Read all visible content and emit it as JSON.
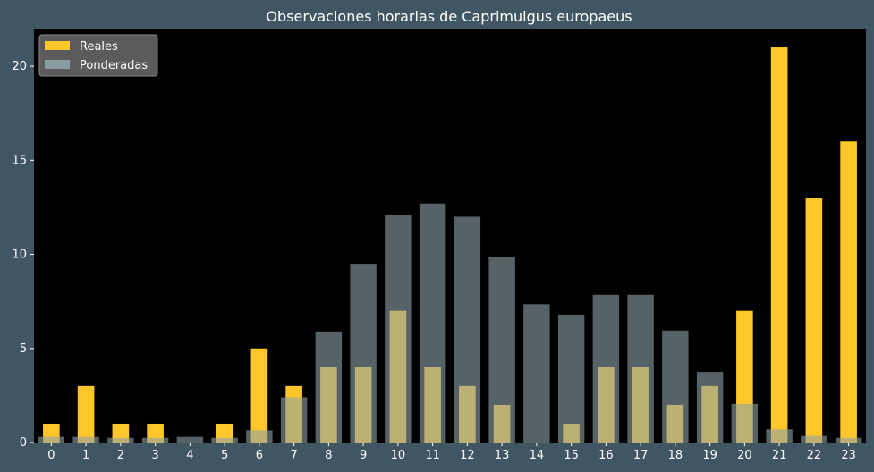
{
  "chart_data": {
    "type": "bar",
    "title": "Observaciones horarias de Caprimulgus europaeus",
    "xlabel": "",
    "ylabel": "",
    "categories": [
      "0",
      "1",
      "2",
      "3",
      "4",
      "5",
      "6",
      "7",
      "8",
      "9",
      "10",
      "11",
      "12",
      "13",
      "14",
      "15",
      "16",
      "17",
      "18",
      "19",
      "20",
      "21",
      "22",
      "23"
    ],
    "ylim": [
      0,
      22
    ],
    "yticks": [
      0,
      5,
      10,
      15,
      20
    ],
    "grid": false,
    "legend_position": "top-left",
    "series": [
      {
        "name": "Reales",
        "color": "#ffc629",
        "values": [
          1,
          3,
          1,
          1,
          0,
          1,
          5,
          3,
          4,
          4,
          7,
          4,
          3,
          2,
          0,
          1,
          4,
          4,
          2,
          3,
          7,
          21,
          13,
          16
        ]
      },
      {
        "name": "Ponderadas",
        "color": "#8fa3a8",
        "opacity": 0.6,
        "values": [
          0.3,
          0.3,
          0.25,
          0.25,
          0.3,
          0.25,
          0.65,
          2.4,
          5.9,
          9.5,
          12.1,
          12.7,
          12.0,
          9.85,
          7.35,
          6.8,
          7.85,
          7.85,
          5.95,
          3.75,
          2.05,
          0.7,
          0.35,
          0.25
        ]
      }
    ]
  },
  "colors": {
    "background": "#405763",
    "plot_background": "#000000",
    "text": "#ffffff",
    "legend_background": "#5b5b5b"
  }
}
